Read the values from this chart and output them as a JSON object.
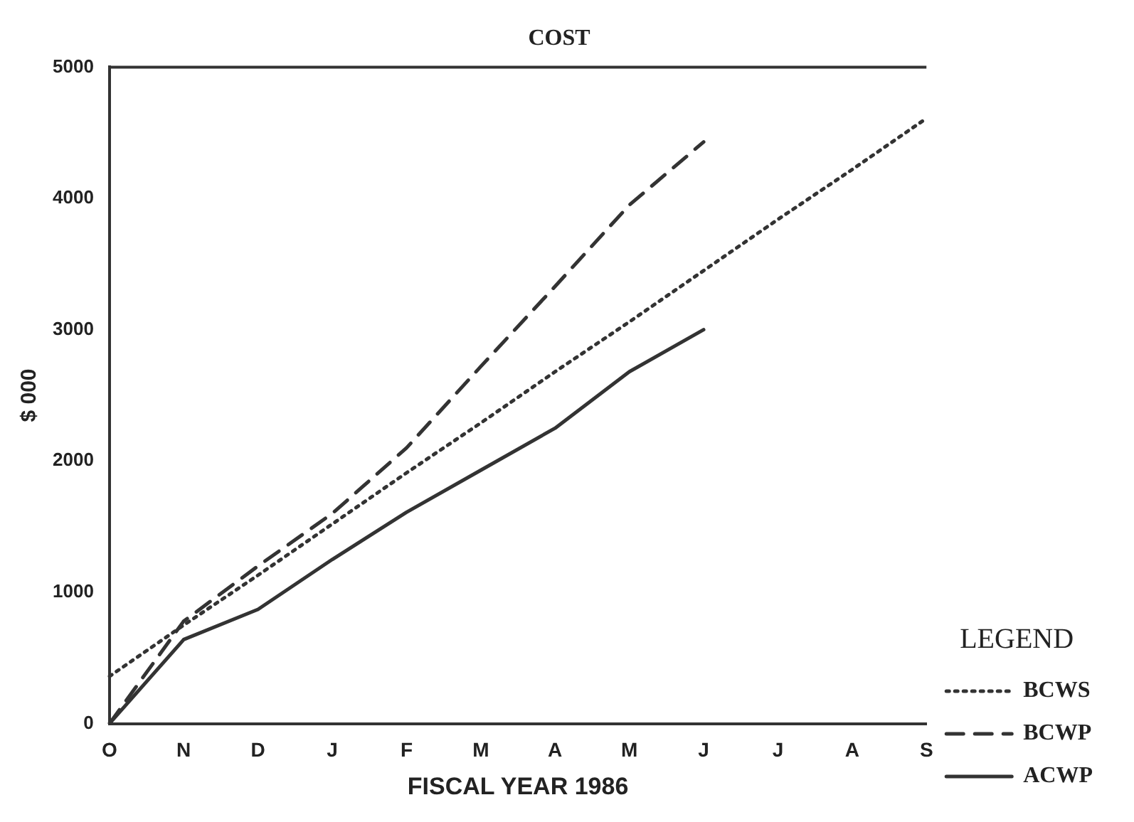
{
  "chart_data": {
    "type": "line",
    "title": "COST",
    "xlabel": "FISCAL YEAR 1986",
    "ylabel": "$ 000",
    "legend_title": "LEGEND",
    "legend": "bottom right",
    "grid": false,
    "marker": "none",
    "categories": [
      "O",
      "N",
      "D",
      "J",
      "F",
      "M",
      "A",
      "M",
      "J",
      "J",
      "A",
      "S"
    ],
    "ylim": [
      0,
      5000
    ],
    "yticks": [
      0,
      1000,
      2000,
      3000,
      4000,
      5000
    ],
    "series": [
      {
        "name": "BCWS",
        "color": "#333333",
        "line_style": "dotted",
        "values": [
          360,
          750,
          1130,
          1520,
          1910,
          2290,
          2680,
          3060,
          3450,
          3840,
          4220,
          4610
        ]
      },
      {
        "name": "BCWP",
        "color": "#333333",
        "line_style": "dashed",
        "values": [
          0,
          780,
          1200,
          1600,
          2100,
          2720,
          3330,
          3950,
          4430,
          null,
          null,
          null
        ]
      },
      {
        "name": "ACWP",
        "color": "#333333",
        "line_style": "solid",
        "values": [
          0,
          640,
          870,
          1250,
          1610,
          1930,
          2250,
          2680,
          3000,
          null,
          null,
          null
        ]
      }
    ]
  }
}
